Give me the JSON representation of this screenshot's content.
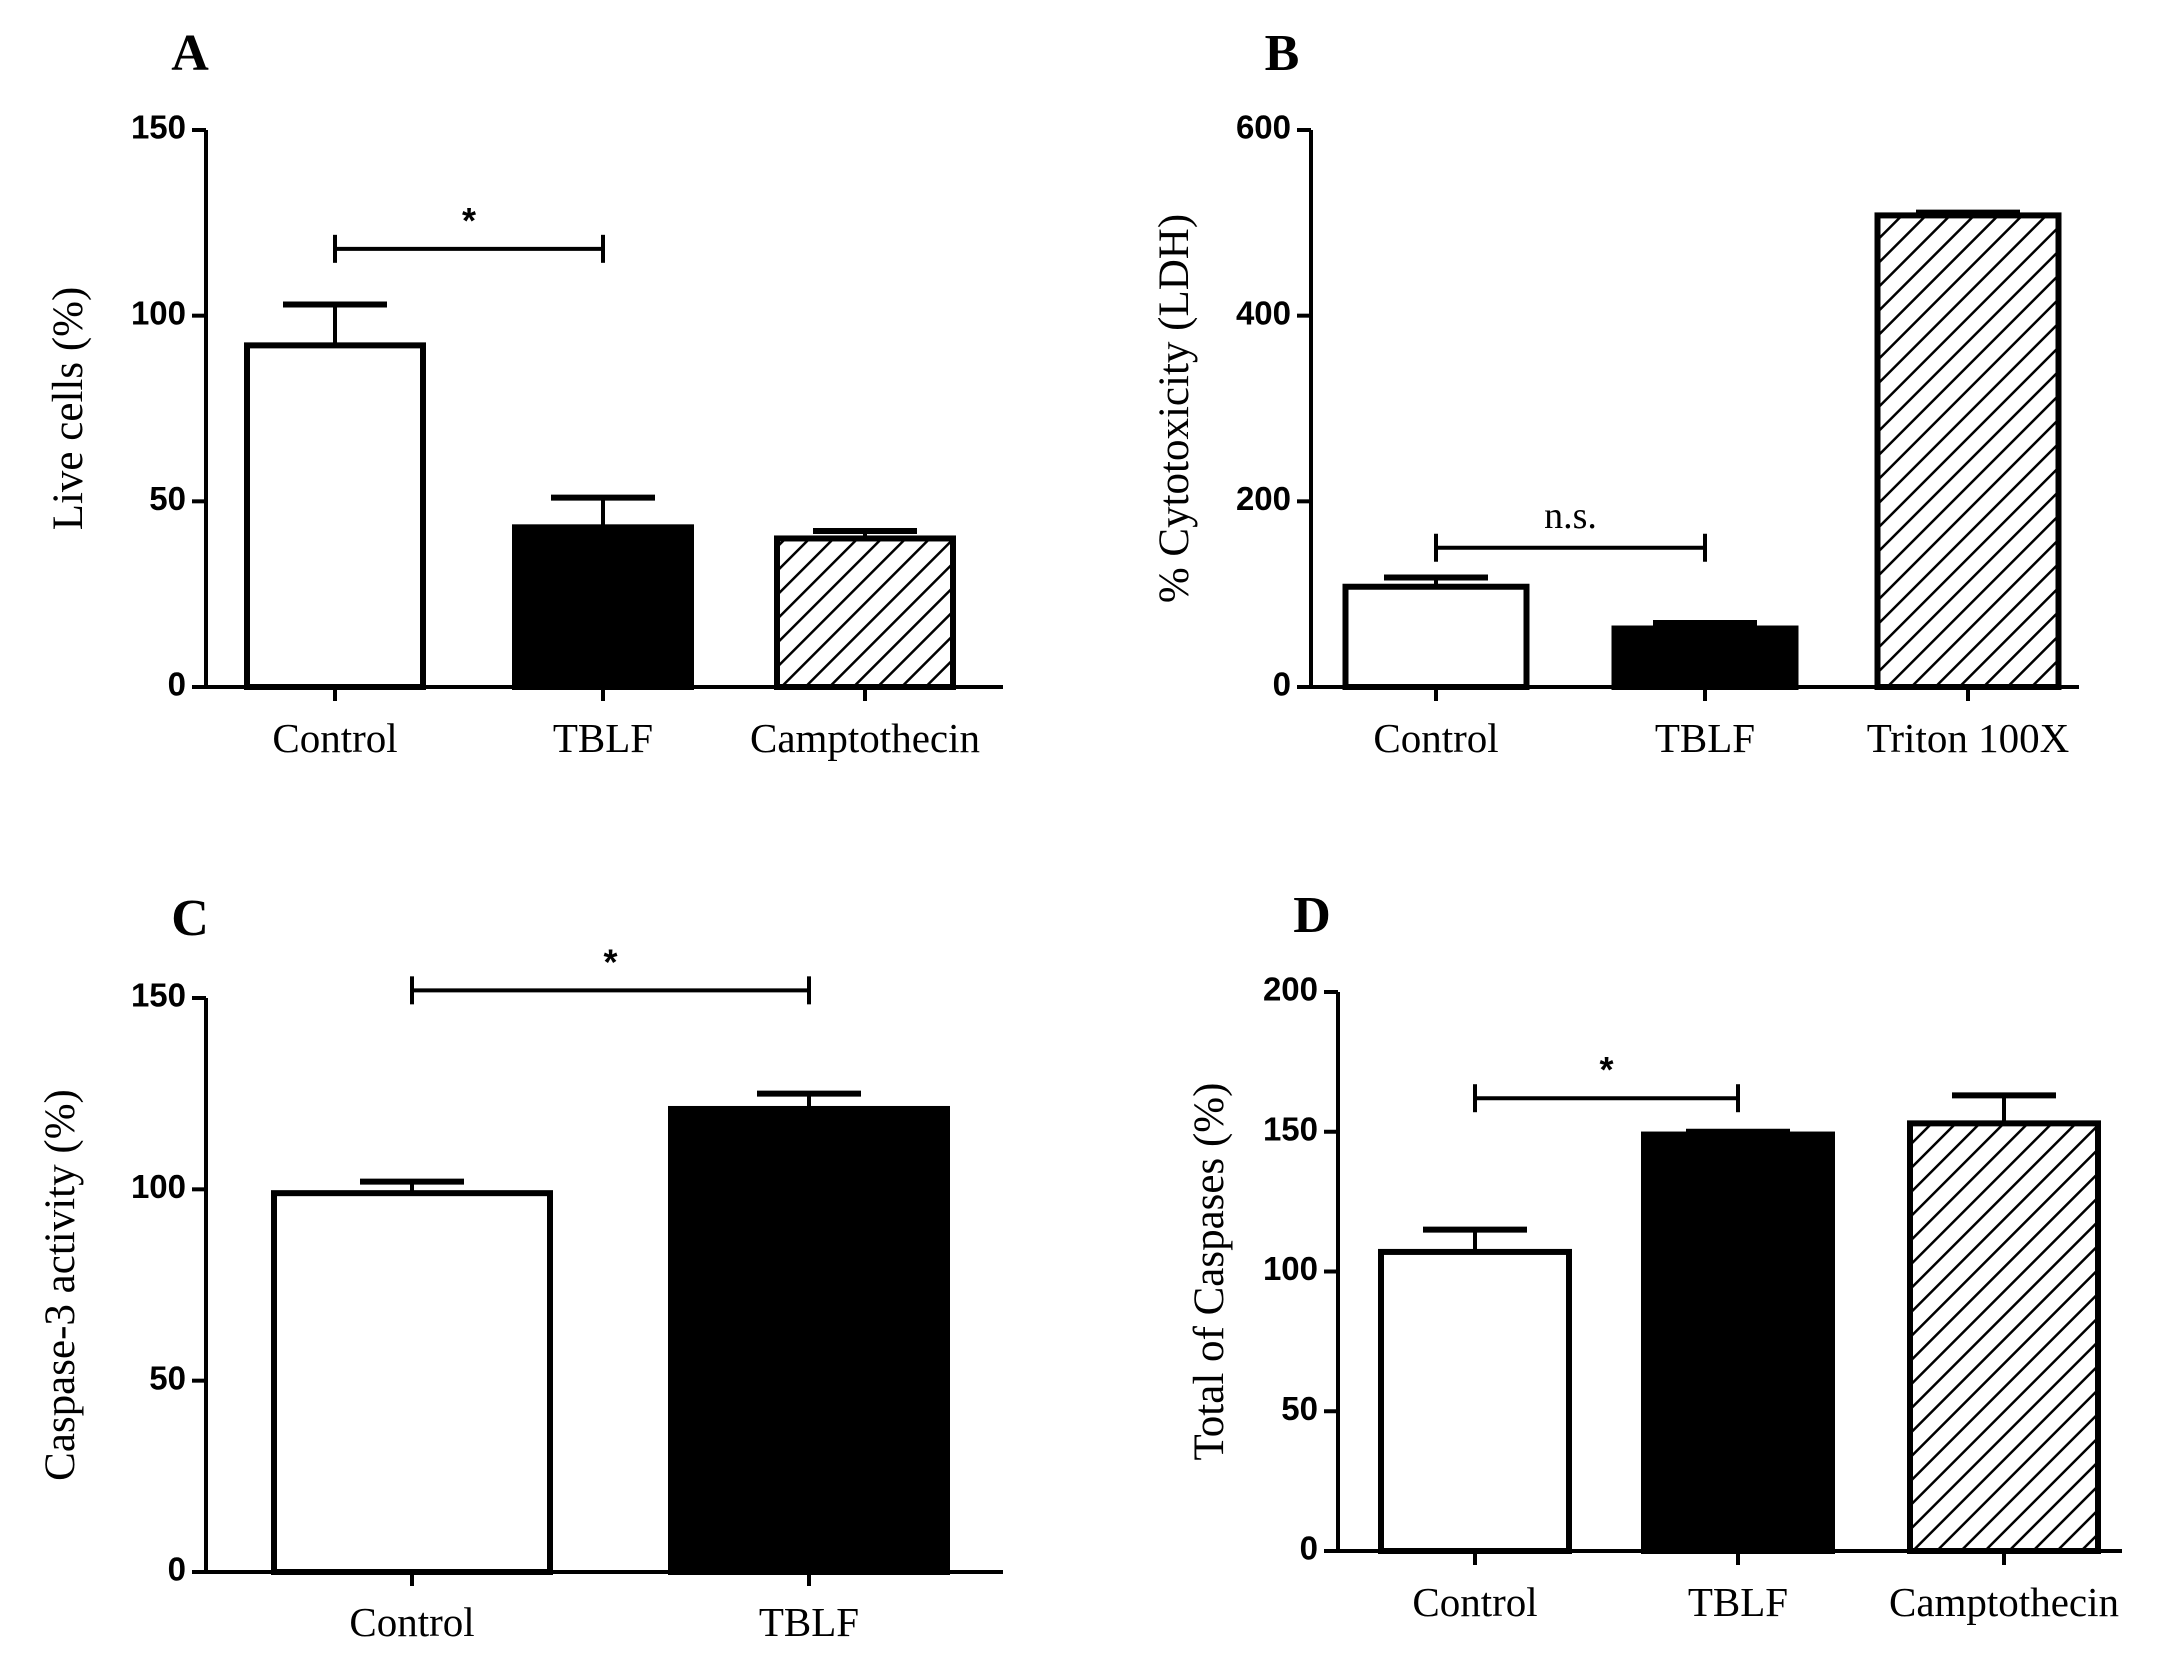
{
  "chart_data": [
    {
      "panel": "A",
      "type": "bar",
      "title": "",
      "xlabel": "",
      "ylabel": "Live cells (%)",
      "ylim": [
        0,
        150
      ],
      "yticks": [
        0,
        50,
        100,
        150
      ],
      "categories": [
        "Control",
        "TBLF",
        "Camptothecin"
      ],
      "values": [
        92,
        43,
        40
      ],
      "errors": [
        11,
        8,
        2
      ],
      "fills": [
        "white",
        "black",
        "hatched"
      ],
      "significance": [
        {
          "from": 0,
          "to": 1,
          "label": "*",
          "y": 118
        }
      ]
    },
    {
      "panel": "B",
      "type": "bar",
      "title": "",
      "xlabel": "",
      "ylabel": "% Cytotoxicity (LDH)",
      "ylim": [
        0,
        600
      ],
      "yticks": [
        0,
        200,
        400,
        600
      ],
      "categories": [
        "Control",
        "TBLF",
        "Triton 100X"
      ],
      "values": [
        108,
        63,
        508
      ],
      "errors": [
        10,
        6,
        3
      ],
      "fills": [
        "white",
        "black",
        "hatched"
      ],
      "significance": [
        {
          "from": 0,
          "to": 1,
          "label": "n.s.",
          "y": 150
        }
      ]
    },
    {
      "panel": "C",
      "type": "bar",
      "title": "",
      "xlabel": "",
      "ylabel": "Caspase-3 activity (%)",
      "ylim": [
        0,
        150
      ],
      "yticks": [
        0,
        50,
        100,
        150
      ],
      "categories": [
        "Control",
        "TBLF"
      ],
      "values": [
        99,
        121
      ],
      "errors": [
        3,
        4
      ],
      "fills": [
        "white",
        "black"
      ],
      "significance": [
        {
          "from": 0,
          "to": 1,
          "label": "*",
          "y": 152
        }
      ]
    },
    {
      "panel": "D",
      "type": "bar",
      "title": "",
      "xlabel": "",
      "ylabel": "Total of Caspases (%)",
      "ylim": [
        0,
        200
      ],
      "yticks": [
        0,
        50,
        100,
        150,
        200
      ],
      "categories": [
        "Control",
        "TBLF",
        "Camptothecin"
      ],
      "values": [
        107,
        149,
        153
      ],
      "errors": [
        8,
        1,
        10
      ],
      "fills": [
        "white",
        "black",
        "hatched"
      ],
      "significance": [
        {
          "from": 0,
          "to": 1,
          "label": "*",
          "y": 162
        }
      ]
    }
  ]
}
